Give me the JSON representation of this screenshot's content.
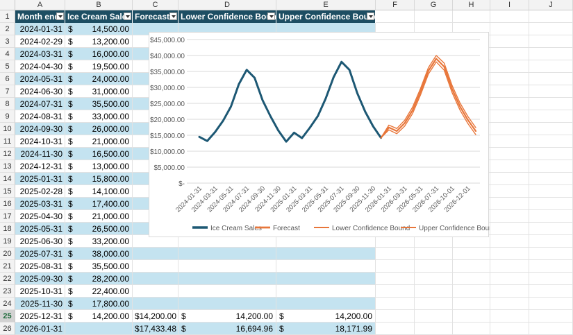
{
  "columns": [
    "A",
    "B",
    "C",
    "D",
    "E",
    "F",
    "G",
    "H",
    "I",
    "J"
  ],
  "table": {
    "headers": [
      "Month end",
      "Ice Cream Sales",
      "Forecast",
      "Lower Confidence Bound",
      "Upper Confidence Bound"
    ],
    "rows": [
      {
        "date": "2024-01-31",
        "sales": "14,500.00"
      },
      {
        "date": "2024-02-29",
        "sales": "13,200.00"
      },
      {
        "date": "2024-03-31",
        "sales": "16,000.00"
      },
      {
        "date": "2024-04-30",
        "sales": "19,500.00"
      },
      {
        "date": "2024-05-31",
        "sales": "24,000.00"
      },
      {
        "date": "2024-06-30",
        "sales": "31,000.00"
      },
      {
        "date": "2024-07-31",
        "sales": "35,500.00"
      },
      {
        "date": "2024-08-31",
        "sales": "33,000.00"
      },
      {
        "date": "2024-09-30",
        "sales": "26,000.00"
      },
      {
        "date": "2024-10-31",
        "sales": "21,000.00"
      },
      {
        "date": "2024-11-30",
        "sales": "16,500.00"
      },
      {
        "date": "2024-12-31",
        "sales": "13,000.00"
      },
      {
        "date": "2025-01-31",
        "sales": "15,800.00"
      },
      {
        "date": "2025-02-28",
        "sales": "14,100.00"
      },
      {
        "date": "2025-03-31",
        "sales": "17,400.00"
      },
      {
        "date": "2025-04-30",
        "sales": "21,000.00"
      },
      {
        "date": "2025-05-31",
        "sales": "26,500.00"
      },
      {
        "date": "2025-06-30",
        "sales": "33,200.00"
      },
      {
        "date": "2025-07-31",
        "sales": "38,000.00"
      },
      {
        "date": "2025-08-31",
        "sales": "35,500.00"
      },
      {
        "date": "2025-09-30",
        "sales": "28,200.00"
      },
      {
        "date": "2025-10-31",
        "sales": "22,400.00"
      },
      {
        "date": "2025-11-30",
        "sales": "17,800.00"
      },
      {
        "date": "2025-12-31",
        "sales": "14,200.00",
        "forecast": "$14,200.00",
        "lower": "14,200.00",
        "upper": "14,200.00"
      },
      {
        "date": "2026-01-31",
        "sales": "",
        "forecast": "$17,433.48",
        "lower": "16,694.96",
        "upper": "18,171.99"
      }
    ]
  },
  "chart_data": {
    "type": "line",
    "y_ticks": [
      "$-",
      "$5,000.00",
      "$10,000.00",
      "$15,000.00",
      "$20,000.00",
      "$25,000.00",
      "$30,000.00",
      "$35,000.00",
      "$40,000.00",
      "$45,000.00"
    ],
    "ylim": [
      0,
      45000
    ],
    "x_labels": [
      "2024-01-31",
      "2024-03-31",
      "2024-05-31",
      "2024-07-31",
      "2024-09-30",
      "2024-11-30",
      "2025-01-31",
      "2025-03-31",
      "2025-05-31",
      "2025-07-31",
      "2025-09-30",
      "2025-11-30",
      "2026-01-31",
      "2026-03-31",
      "2026-05-31",
      "2026-07-31",
      "2026-10-01",
      "2026-12-01"
    ],
    "n_points": 36,
    "series": [
      {
        "name": "Ice Cream Sales",
        "color": "#1d5874",
        "start": 0,
        "values": [
          14500,
          13200,
          16000,
          19500,
          24000,
          31000,
          35500,
          33000,
          26000,
          21000,
          16500,
          13000,
          15800,
          14100,
          17400,
          21000,
          26500,
          33200,
          38000,
          35500,
          28200,
          22400,
          17800,
          14200
        ]
      },
      {
        "name": "Forecast",
        "color": "#e8763a",
        "start": 23,
        "values": [
          14200,
          17433,
          16300,
          18800,
          22800,
          28600,
          35200,
          39000,
          36500,
          29500,
          24000,
          19800,
          16300
        ]
      },
      {
        "name": "Lower Confidence Bound",
        "color": "#e8763a",
        "start": 23,
        "values": [
          14200,
          16695,
          15500,
          17900,
          21800,
          27600,
          34200,
          38000,
          35400,
          28400,
          22900,
          18700,
          15200
        ]
      },
      {
        "name": "Upper Confidence Bound",
        "color": "#e8763a",
        "start": 23,
        "values": [
          14200,
          18172,
          17100,
          19700,
          23800,
          29600,
          36200,
          40000,
          37600,
          30600,
          25100,
          20900,
          17400
        ]
      }
    ],
    "legend_position": "bottom",
    "grid": true
  }
}
